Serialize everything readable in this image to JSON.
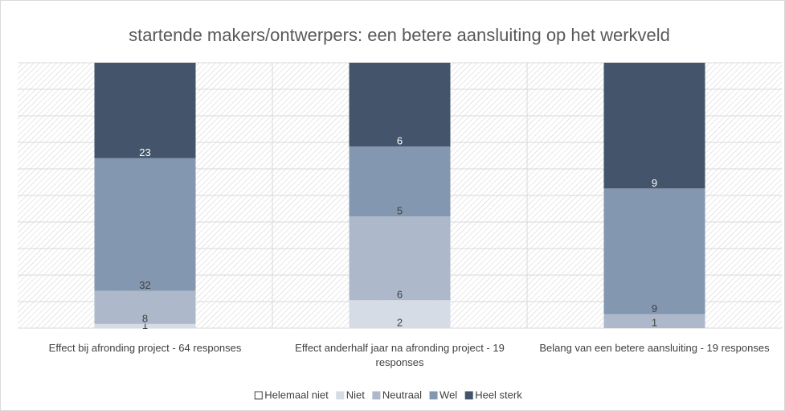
{
  "chart_data": {
    "type": "stacked_bar_percent",
    "title": "startende makers/ontwerpers: een betere aansluiting op het werkveld",
    "categories": [
      "Effect bij afronding project - 64 responses",
      "Effect anderhalf jaar na afronding project - 19 responses",
      "Belang van een betere aansluiting - 19 responses"
    ],
    "series": [
      {
        "name": "Helemaal niet",
        "color": "#ffffff",
        "values": [
          0,
          0,
          0
        ]
      },
      {
        "name": "Niet",
        "color": "#d6dce5",
        "values": [
          1,
          2,
          0
        ]
      },
      {
        "name": "Neutraal",
        "color": "#adb9ca",
        "values": [
          8,
          6,
          1
        ]
      },
      {
        "name": "Wel",
        "color": "#8497b0",
        "values": [
          32,
          5,
          9
        ]
      },
      {
        "name": "Heel sterk",
        "color": "#44546a",
        "values": [
          23,
          6,
          9
        ]
      }
    ],
    "ylim": [
      0,
      100
    ],
    "yticks": [
      0,
      10,
      20,
      30,
      40,
      50,
      60,
      70,
      80,
      90,
      100
    ],
    "grid": true,
    "legend": "bottom"
  }
}
